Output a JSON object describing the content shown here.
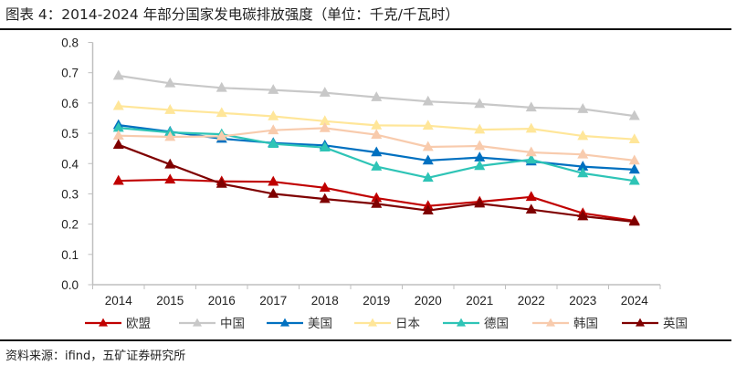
{
  "header": {
    "title": "图表 4：2014-2024 年部分国家发电碳排放强度（单位：千克/千瓦时）"
  },
  "footer": {
    "source": "资料来源：ifind，五矿证券研究所"
  },
  "chart_data": {
    "type": "line",
    "title": "图表 4：2014-2024 年部分国家发电碳排放强度（单位：千克/千瓦时）",
    "xlabel": "",
    "ylabel": "",
    "ylim": [
      0,
      0.8
    ],
    "yticks": [
      "0.0",
      "0.1",
      "0.2",
      "0.3",
      "0.4",
      "0.5",
      "0.6",
      "0.7",
      "0.8"
    ],
    "ytick_values": [
      0,
      0.1,
      0.2,
      0.3,
      0.4,
      0.5,
      0.6,
      0.7,
      0.8
    ],
    "categories": [
      "2014",
      "2015",
      "2016",
      "2017",
      "2018",
      "2019",
      "2020",
      "2021",
      "2022",
      "2023",
      "2024"
    ],
    "grid": false,
    "legend_position": "bottom",
    "marker": "triangle",
    "series": [
      {
        "name": "欧盟",
        "color": "#C00000",
        "values": [
          0.343,
          0.347,
          0.341,
          0.34,
          0.32,
          0.286,
          0.26,
          0.274,
          0.29,
          0.236,
          0.211
        ]
      },
      {
        "name": "中国",
        "color": "#C8C8C8",
        "values": [
          0.69,
          0.665,
          0.65,
          0.643,
          0.634,
          0.619,
          0.605,
          0.597,
          0.585,
          0.58,
          0.557
        ]
      },
      {
        "name": "美国",
        "color": "#0070C0",
        "values": [
          0.527,
          0.505,
          0.482,
          0.468,
          0.46,
          0.437,
          0.41,
          0.42,
          0.407,
          0.39,
          0.38
        ]
      },
      {
        "name": "日本",
        "color": "#FFE699",
        "values": [
          0.59,
          0.577,
          0.567,
          0.556,
          0.54,
          0.526,
          0.525,
          0.512,
          0.515,
          0.491,
          0.48
        ]
      },
      {
        "name": "德国",
        "color": "#2EC4B6",
        "values": [
          0.518,
          0.503,
          0.497,
          0.465,
          0.453,
          0.39,
          0.353,
          0.392,
          0.413,
          0.368,
          0.343
        ]
      },
      {
        "name": "韩国",
        "color": "#F8CBAD",
        "values": [
          0.492,
          0.488,
          0.49,
          0.51,
          0.517,
          0.495,
          0.455,
          0.458,
          0.437,
          0.43,
          0.41
        ]
      },
      {
        "name": "英国",
        "color": "#7F0000",
        "values": [
          0.462,
          0.397,
          0.333,
          0.3,
          0.283,
          0.267,
          0.245,
          0.268,
          0.248,
          0.226,
          0.208
        ]
      }
    ]
  }
}
